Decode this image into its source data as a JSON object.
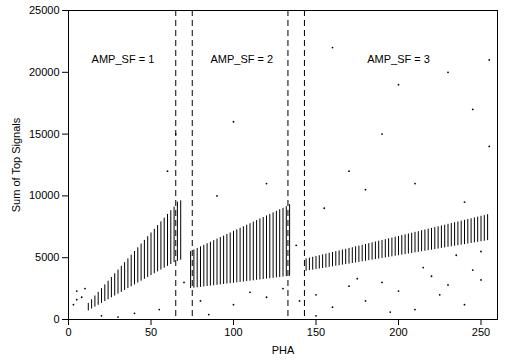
{
  "chart_data": {
    "type": "scatter",
    "x_label": "PHA",
    "y_label": "Sum of Top Signals",
    "xlim": [
      0,
      260
    ],
    "xticks": [
      0,
      50,
      100,
      150,
      200,
      250
    ],
    "ylim": [
      0,
      25000
    ],
    "yticks": [
      0,
      5000,
      10000,
      15000,
      20000,
      25000
    ],
    "grid": false,
    "color": "#000000",
    "line_style": "dashed",
    "boundaries": [
      65,
      75,
      133,
      143
    ],
    "annotations": [
      {
        "text": "AMP_SF = 1",
        "x": 33,
        "y": 21000
      },
      {
        "text": "AMP_SF = 2",
        "x": 105,
        "y": 21000
      },
      {
        "text": "AMP_SF = 3",
        "x": 200,
        "y": 21000
      }
    ],
    "bands": {
      "x": [
        12,
        14,
        16,
        18,
        20,
        22,
        24,
        26,
        28,
        30,
        32,
        34,
        36,
        38,
        40,
        42,
        44,
        46,
        48,
        50,
        52,
        54,
        56,
        58,
        60,
        62,
        64,
        66,
        68,
        74,
        76,
        78,
        80,
        82,
        84,
        86,
        88,
        90,
        92,
        94,
        96,
        98,
        100,
        102,
        104,
        106,
        108,
        110,
        112,
        114,
        116,
        118,
        120,
        122,
        124,
        126,
        128,
        130,
        132,
        134,
        144,
        146,
        148,
        150,
        152,
        154,
        156,
        158,
        160,
        162,
        164,
        166,
        168,
        170,
        172,
        174,
        176,
        178,
        180,
        182,
        184,
        186,
        188,
        190,
        192,
        194,
        196,
        198,
        200,
        202,
        204,
        206,
        208,
        210,
        212,
        214,
        216,
        218,
        220,
        222,
        224,
        226,
        228,
        230,
        232,
        234,
        236,
        238,
        240,
        242,
        244,
        246,
        248,
        250,
        252,
        254
      ],
      "ymin": [
        700,
        850,
        1000,
        1150,
        1300,
        1450,
        1600,
        1750,
        1900,
        2050,
        2200,
        2350,
        2500,
        2650,
        2800,
        2950,
        3100,
        3250,
        3400,
        3550,
        3700,
        3850,
        4000,
        4150,
        4300,
        4450,
        4600,
        4700,
        4800,
        2500,
        2530,
        2570,
        2600,
        2630,
        2670,
        2700,
        2730,
        2770,
        2800,
        2830,
        2870,
        2900,
        2930,
        2970,
        3000,
        3030,
        3070,
        3100,
        3130,
        3170,
        3200,
        3230,
        3270,
        3300,
        3330,
        3370,
        3400,
        3430,
        3470,
        3500,
        3900,
        3950,
        3990,
        4040,
        4080,
        4130,
        4170,
        4220,
        4260,
        4310,
        4350,
        4400,
        4440,
        4490,
        4530,
        4580,
        4620,
        4670,
        4710,
        4760,
        4800,
        4850,
        4890,
        4940,
        4980,
        5030,
        5070,
        5120,
        5160,
        5210,
        5250,
        5300,
        5340,
        5390,
        5430,
        5480,
        5520,
        5570,
        5610,
        5660,
        5700,
        5750,
        5790,
        5840,
        5880,
        5930,
        5970,
        6020,
        6060,
        6110,
        6150,
        6200,
        6240,
        6290,
        6330,
        6380
      ],
      "ymax": [
        1300,
        1600,
        1900,
        2200,
        2500,
        2800,
        3100,
        3400,
        3700,
        4000,
        4300,
        4600,
        4900,
        5200,
        5500,
        5800,
        6100,
        6400,
        6700,
        7000,
        7300,
        7600,
        7900,
        8200,
        8500,
        8800,
        9100,
        9500,
        9600,
        5500,
        5630,
        5750,
        5880,
        6000,
        6130,
        6250,
        6380,
        6500,
        6630,
        6750,
        6880,
        7000,
        7130,
        7250,
        7380,
        7500,
        7630,
        7750,
        7880,
        8000,
        8130,
        8250,
        8380,
        8500,
        8630,
        8750,
        8880,
        9000,
        9130,
        9300,
        4900,
        4970,
        5030,
        5100,
        5160,
        5230,
        5290,
        5360,
        5420,
        5490,
        5550,
        5620,
        5680,
        5750,
        5810,
        5880,
        5940,
        6010,
        6070,
        6140,
        6200,
        6270,
        6330,
        6400,
        6460,
        6530,
        6590,
        6660,
        6720,
        6790,
        6850,
        6920,
        6980,
        7050,
        7110,
        7180,
        7240,
        7310,
        7370,
        7440,
        7500,
        7570,
        7630,
        7700,
        7760,
        7830,
        7890,
        7960,
        8020,
        8090,
        8150,
        8220,
        8280,
        8350,
        8410,
        8480
      ]
    },
    "points": {
      "x": [
        5,
        5,
        8,
        10,
        3,
        20,
        40,
        55,
        80,
        100,
        110,
        120,
        130,
        150,
        160,
        170,
        180,
        190,
        200,
        210,
        220,
        230,
        240,
        250,
        155,
        170,
        190,
        210,
        230,
        245,
        255,
        100,
        60,
        200,
        160,
        240,
        180,
        120,
        90,
        255,
        175,
        195,
        225,
        245,
        150,
        85,
        140,
        215,
        235,
        250,
        30,
        70,
        138,
        65
      ],
      "y": [
        1600,
        2300,
        1800,
        2500,
        1200,
        300,
        500,
        800,
        1500,
        1200,
        2200,
        1800,
        2500,
        2000,
        1000,
        2700,
        1500,
        3000,
        2300,
        800,
        3500,
        2800,
        1200,
        3200,
        9000,
        12000,
        15000,
        11000,
        20000,
        17000,
        21000,
        16000,
        12000,
        19000,
        22000,
        9500,
        10500,
        11000,
        10000,
        14000,
        3300,
        600,
        2000,
        4000,
        300,
        400,
        1500,
        4200,
        5200,
        5500,
        200,
        3000,
        6000,
        15000
      ]
    }
  }
}
